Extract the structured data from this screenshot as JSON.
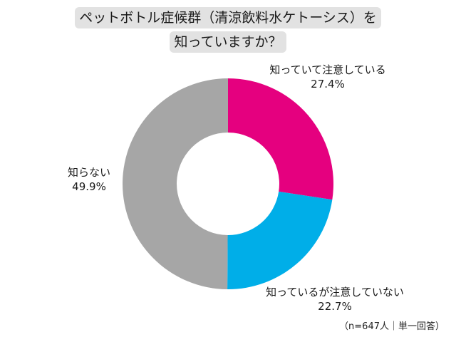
{
  "title_lines": [
    "ペットボトル症候群（清涼飲料水ケトーシス）を",
    "知っていますか？"
  ],
  "footnote": "（n=647人｜単一回答）",
  "chart_data": {
    "type": "pie",
    "donut": true,
    "categories": [
      "知っていて注意している",
      "知っているが注意していない",
      "知らない"
    ],
    "values": [
      27.4,
      22.7,
      49.9
    ],
    "value_labels": [
      "27.4%",
      "22.7%",
      "49.9%"
    ],
    "colors": [
      "#e5007f",
      "#00aee8",
      "#a6a6a6"
    ],
    "start_angle_deg": 0,
    "direction": "clockwise",
    "title": "ペットボトル症候群（清涼飲料水ケトーシス）を知っていますか？"
  }
}
